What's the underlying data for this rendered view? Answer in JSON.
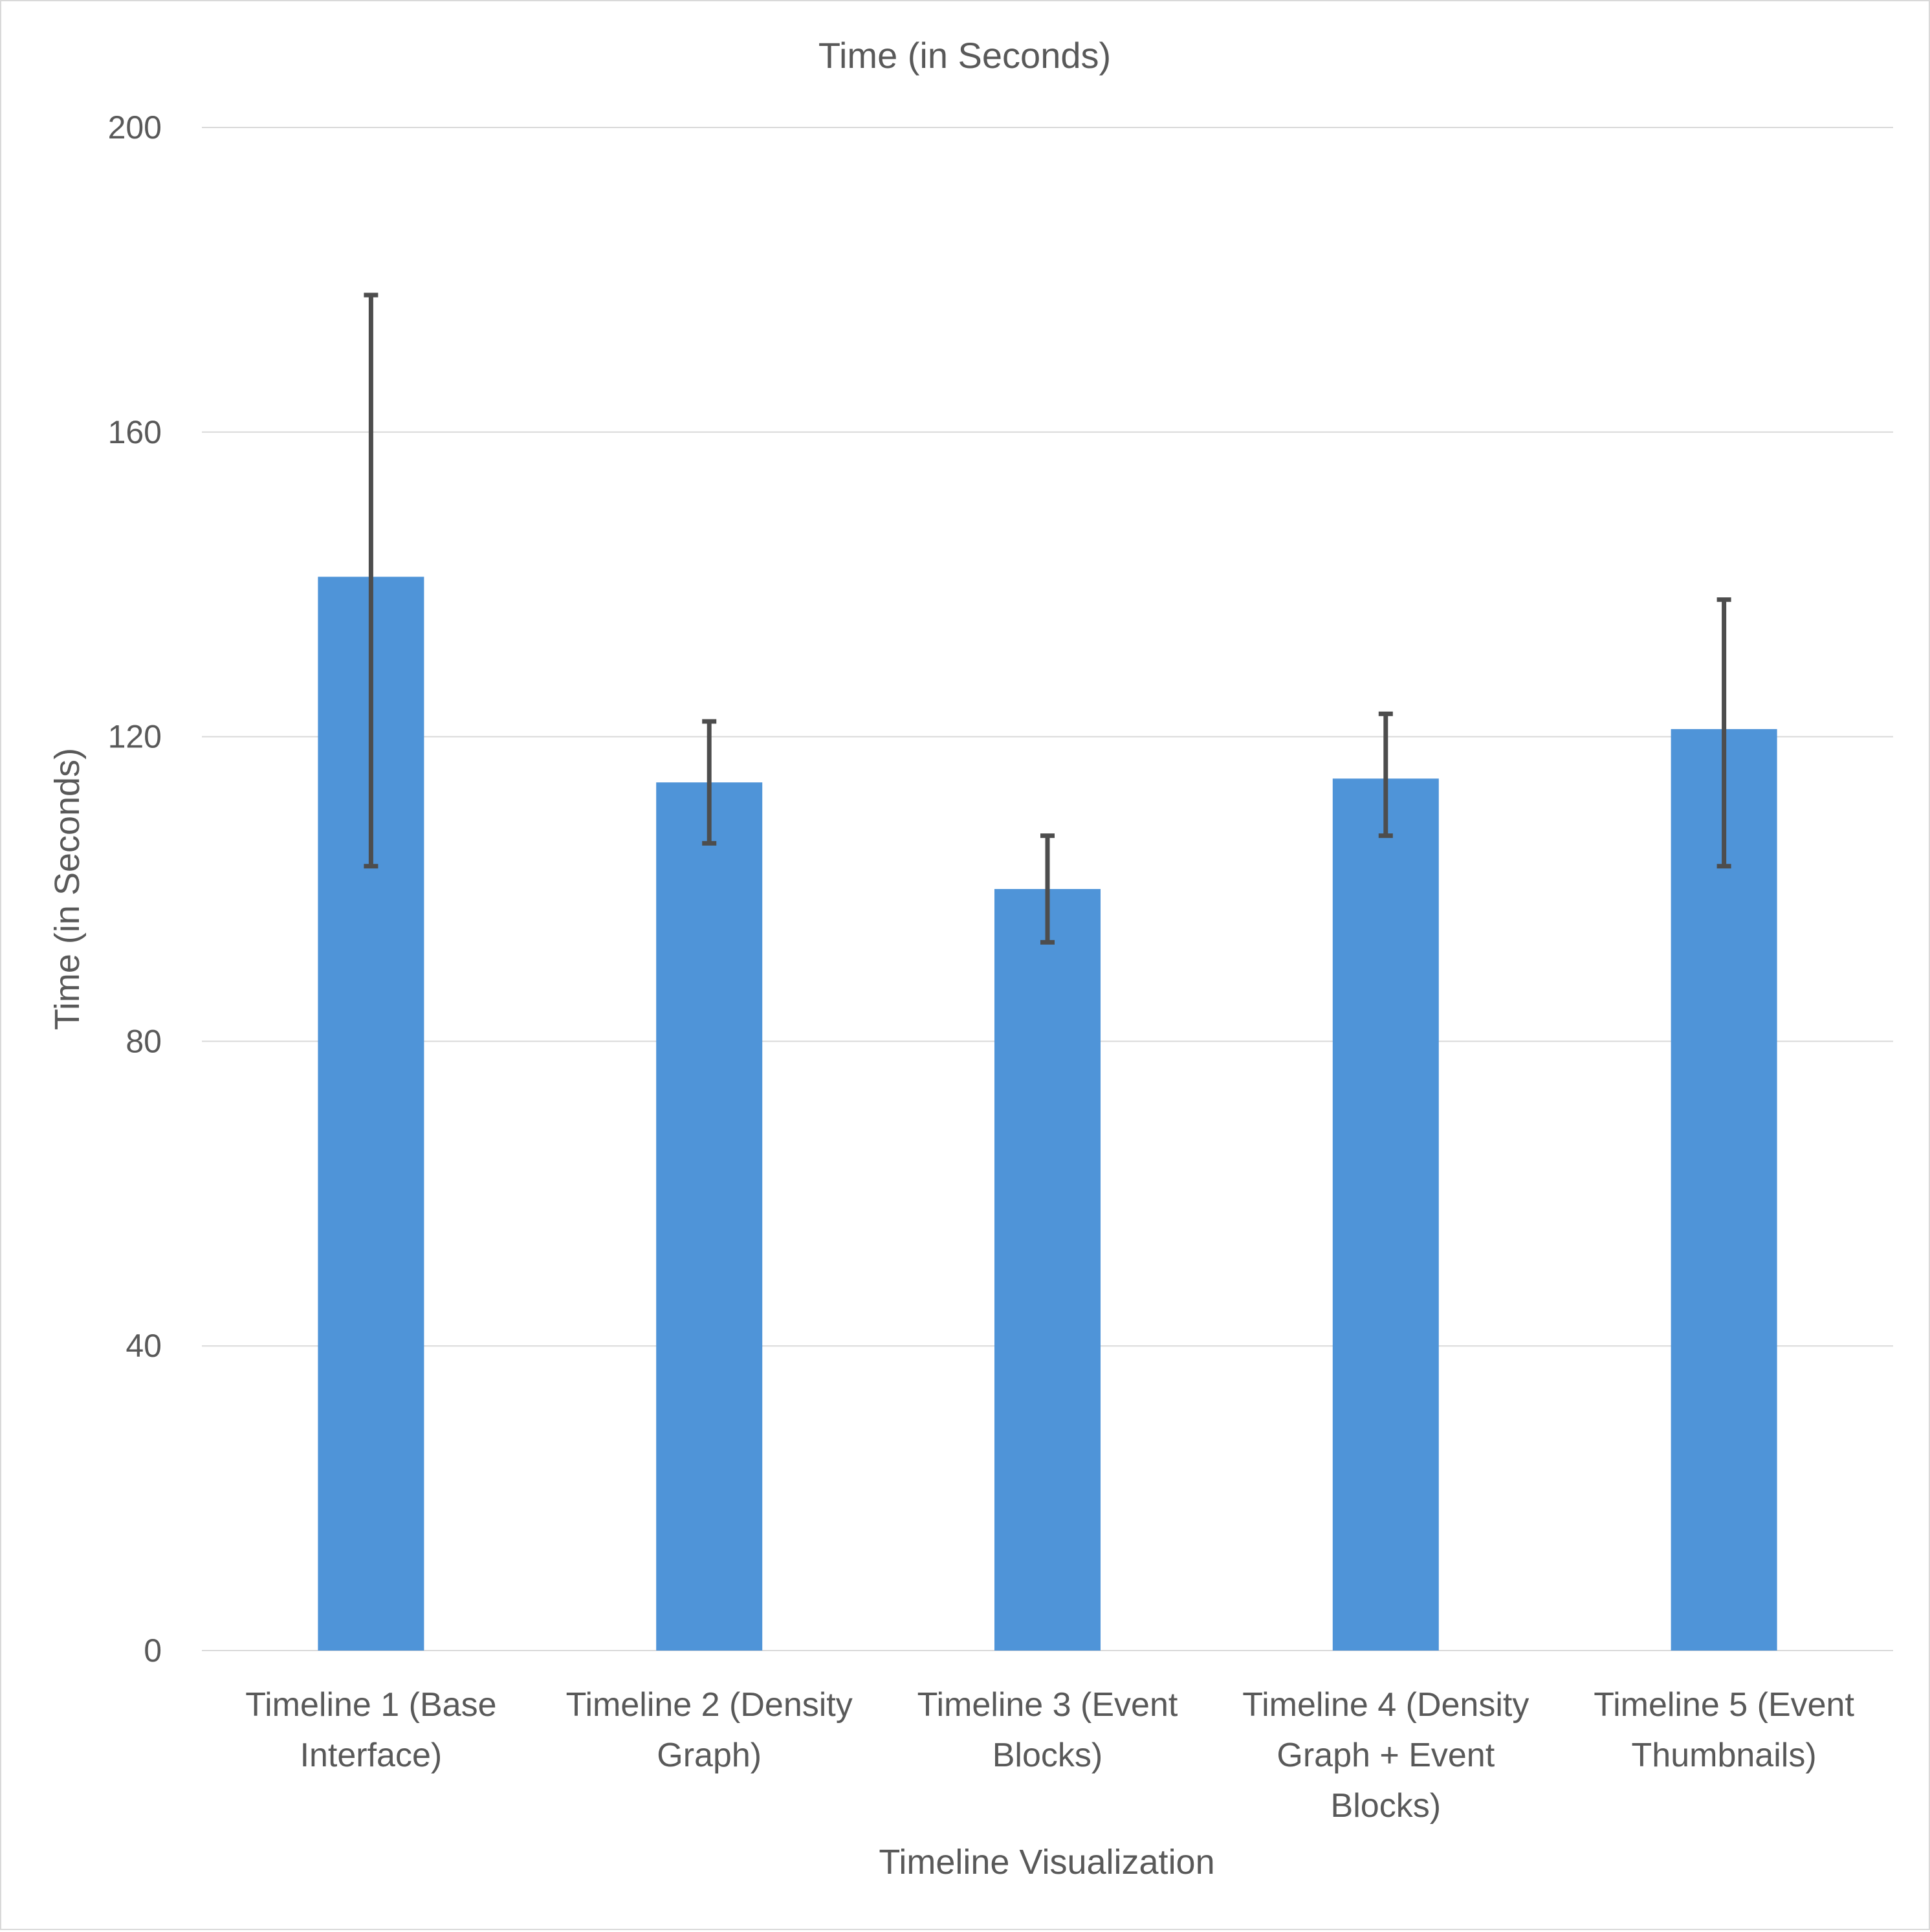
{
  "chart_data": {
    "type": "bar",
    "title": "Time (in Seconds)",
    "xlabel": "Timeline Visualization",
    "ylabel": "Time (in Seconds)",
    "ylim": [
      0,
      200
    ],
    "yticks": [
      0,
      40,
      80,
      120,
      160,
      200
    ],
    "grid": true,
    "legend": "none",
    "bar_color": "#4f94d8",
    "error_bar_color": "#4d4d4d",
    "categories": [
      [
        "Timeline 1 (Base",
        "Interface)"
      ],
      [
        "Timeline 2 (Density",
        "Graph)"
      ],
      [
        "Timeline 3 (Event",
        "Blocks)"
      ],
      [
        "Timeline 4 (Density",
        "Graph + Event",
        "Blocks)"
      ],
      [
        "Timeline 5 (Event",
        "Thumbnails)"
      ]
    ],
    "values": [
      141,
      114,
      100,
      114.5,
      121
    ],
    "error_low": [
      103,
      106,
      93,
      107,
      103
    ],
    "error_high": [
      178,
      122,
      107,
      123,
      138
    ]
  }
}
